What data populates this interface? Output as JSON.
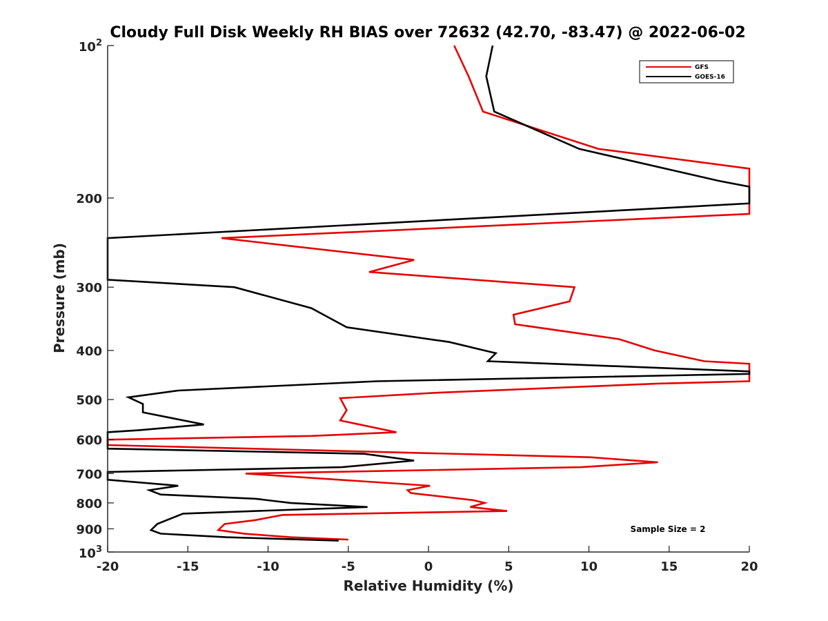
{
  "chart_data": {
    "type": "line",
    "title": "Cloudy Full Disk Weekly RH BIAS over 72632 (42.70, -83.47) @ 2022-06-02",
    "xlabel": "Relative Humidity (%)",
    "ylabel": "Pressure (mb)",
    "xlim": [
      -20,
      20
    ],
    "ylim": [
      100,
      1000
    ],
    "y_scale": "log",
    "y_reversed": true,
    "x_ticks": [
      "-20",
      "-15",
      "-10",
      "-5",
      "0",
      "5",
      "10",
      "15",
      "20"
    ],
    "y_ticks": [
      {
        "value": 100,
        "base": "10",
        "exp": "2"
      },
      {
        "value": 200,
        "label": "200"
      },
      {
        "value": 300,
        "label": "300"
      },
      {
        "value": 400,
        "label": "400"
      },
      {
        "value": 500,
        "label": "500"
      },
      {
        "value": 600,
        "label": "600"
      },
      {
        "value": 700,
        "label": "700"
      },
      {
        "value": 800,
        "label": "800"
      },
      {
        "value": 900,
        "label": "900"
      },
      {
        "value": 1000,
        "base": "10",
        "exp": "3"
      }
    ],
    "legend_position": "top-right",
    "annotation": "Sample Size = 2",
    "series": [
      {
        "name": "GFS",
        "color": "#e60000",
        "points": [
          [
            1.6,
            100
          ],
          [
            2.5,
            115
          ],
          [
            3.4,
            135
          ],
          [
            10.6,
            160
          ],
          [
            20,
            175
          ],
          [
            20,
            215
          ],
          [
            -12.9,
            240
          ],
          [
            -0.9,
            265
          ],
          [
            -3.7,
            280
          ],
          [
            9.1,
            300
          ],
          [
            8.8,
            320
          ],
          [
            5.3,
            340
          ],
          [
            5.4,
            355
          ],
          [
            11.9,
            380
          ],
          [
            14.1,
            400
          ],
          [
            17.2,
            420
          ],
          [
            20,
            425
          ],
          [
            20,
            440
          ],
          [
            20,
            460
          ],
          [
            14.3,
            465
          ],
          [
            0.4,
            485
          ],
          [
            -5.5,
            497
          ],
          [
            -5.1,
            525
          ],
          [
            -5.5,
            550
          ],
          [
            -2.0,
            580
          ],
          [
            -7.3,
            590
          ],
          [
            -20,
            600
          ],
          [
            -20,
            615
          ],
          [
            10.1,
            650
          ],
          [
            14.3,
            665
          ],
          [
            9.5,
            680
          ],
          [
            -11.4,
            700
          ],
          [
            0.1,
            740
          ],
          [
            -1.3,
            755
          ],
          [
            -1.1,
            765
          ],
          [
            2.8,
            790
          ],
          [
            3.5,
            800
          ],
          [
            2.6,
            815
          ],
          [
            4.9,
            830
          ],
          [
            -9.1,
            845
          ],
          [
            -10.8,
            865
          ],
          [
            -12.7,
            880
          ],
          [
            -13.1,
            905
          ],
          [
            -11.5,
            920
          ],
          [
            -8.6,
            935
          ],
          [
            -5.0,
            945
          ]
        ]
      },
      {
        "name": "GOES-16",
        "color": "#000000",
        "points": [
          [
            4.0,
            100
          ],
          [
            3.6,
            115
          ],
          [
            4.1,
            135
          ],
          [
            9.4,
            160
          ],
          [
            18.1,
            185
          ],
          [
            20,
            190
          ],
          [
            20,
            205
          ],
          [
            -20,
            240
          ],
          [
            -20,
            290
          ],
          [
            -12.1,
            300
          ],
          [
            -7.3,
            330
          ],
          [
            -5.1,
            360
          ],
          [
            1.3,
            385
          ],
          [
            4.2,
            405
          ],
          [
            3.7,
            420
          ],
          [
            20,
            440
          ],
          [
            20,
            445
          ],
          [
            -3.2,
            460
          ],
          [
            -15.6,
            480
          ],
          [
            -18.7,
            495
          ],
          [
            -17.8,
            510
          ],
          [
            -17.8,
            530
          ],
          [
            -14.0,
            560
          ],
          [
            -18.1,
            575
          ],
          [
            -20,
            580
          ],
          [
            -20,
            625
          ],
          [
            -4.0,
            640
          ],
          [
            -0.9,
            660
          ],
          [
            -5.4,
            680
          ],
          [
            -20,
            695
          ],
          [
            -20,
            720
          ],
          [
            -15.6,
            740
          ],
          [
            -17.4,
            755
          ],
          [
            -16.7,
            770
          ],
          [
            -10.8,
            785
          ],
          [
            -8.6,
            800
          ],
          [
            -3.8,
            815
          ],
          [
            -15.3,
            840
          ],
          [
            -16.9,
            880
          ],
          [
            -17.3,
            905
          ],
          [
            -16.7,
            920
          ],
          [
            -12.6,
            935
          ],
          [
            -5.6,
            950
          ]
        ]
      }
    ]
  }
}
